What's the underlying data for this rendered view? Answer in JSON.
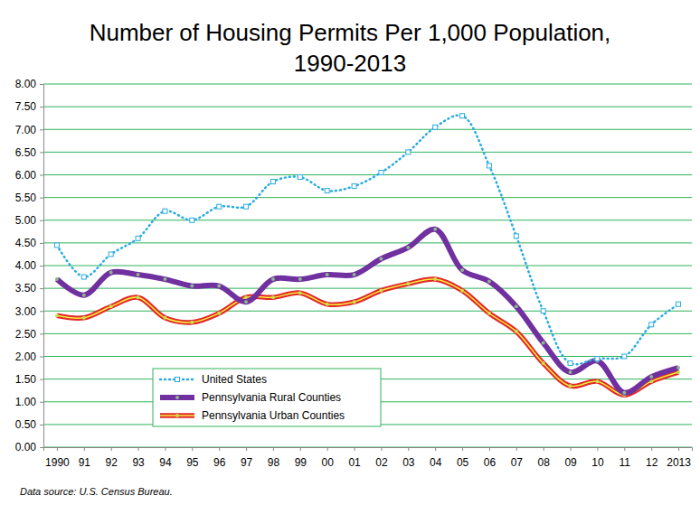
{
  "chart_data": {
    "type": "line",
    "title": [
      "Number of Housing Permits Per 1,000 Population,",
      "1990-2013"
    ],
    "source": "Data source: U.S. Census Bureau.",
    "categories": [
      "1990",
      "91",
      "92",
      "93",
      "94",
      "95",
      "96",
      "97",
      "98",
      "99",
      "00",
      "01",
      "02",
      "03",
      "04",
      "05",
      "06",
      "07",
      "08",
      "09",
      "10",
      "11",
      "12",
      "2013"
    ],
    "series": [
      {
        "name": "United States",
        "color": "#29abe2",
        "marker": "square",
        "line_style": "dotted",
        "values": [
          4.45,
          3.75,
          4.25,
          4.6,
          5.2,
          5.0,
          5.3,
          5.3,
          5.85,
          5.95,
          5.65,
          5.75,
          6.05,
          6.5,
          7.05,
          7.3,
          6.2,
          4.65,
          3.0,
          1.85,
          1.95,
          2.0,
          2.7,
          3.15
        ]
      },
      {
        "name": "Pennsylvania Rural Counties",
        "color": "#7030a0",
        "marker": "circle",
        "line_style": "solid",
        "values": [
          3.7,
          3.35,
          3.85,
          3.8,
          3.7,
          3.55,
          3.55,
          3.2,
          3.7,
          3.7,
          3.8,
          3.8,
          4.15,
          4.4,
          4.8,
          3.9,
          3.65,
          3.1,
          2.3,
          1.65,
          1.9,
          1.2,
          1.55,
          1.75
        ]
      },
      {
        "name": "Pennsylvania Urban Counties",
        "color": "#e3262a",
        "marker": "circle",
        "line_style": "double",
        "values": [
          2.9,
          2.85,
          3.1,
          3.3,
          2.85,
          2.75,
          2.95,
          3.3,
          3.3,
          3.4,
          3.15,
          3.2,
          3.45,
          3.6,
          3.7,
          3.45,
          2.95,
          2.55,
          1.85,
          1.35,
          1.45,
          1.15,
          1.45,
          1.65
        ]
      }
    ],
    "ylim": [
      0,
      8
    ],
    "yticks": [
      {
        "value": 0,
        "label": "0.00"
      },
      {
        "value": 0.5,
        "label": "0.50"
      },
      {
        "value": 1,
        "label": "1.00"
      },
      {
        "value": 1.5,
        "label": "1.50"
      },
      {
        "value": 2,
        "label": "2.00"
      },
      {
        "value": 2.5,
        "label": "2.50"
      },
      {
        "value": 3,
        "label": "3.00"
      },
      {
        "value": 3.5,
        "label": "3.50"
      },
      {
        "value": 4,
        "label": "4.00"
      },
      {
        "value": 4.5,
        "label": "4.50"
      },
      {
        "value": 5,
        "label": "5.00"
      },
      {
        "value": 5.5,
        "label": "5.50"
      },
      {
        "value": 6,
        "label": "6.00"
      },
      {
        "value": 6.5,
        "label": "6.50"
      },
      {
        "value": 7,
        "label": "7.00"
      },
      {
        "value": 7.5,
        "label": "7.50"
      },
      {
        "value": 8,
        "label": "8.00"
      }
    ],
    "grid": true,
    "legend": "bottom-left"
  }
}
